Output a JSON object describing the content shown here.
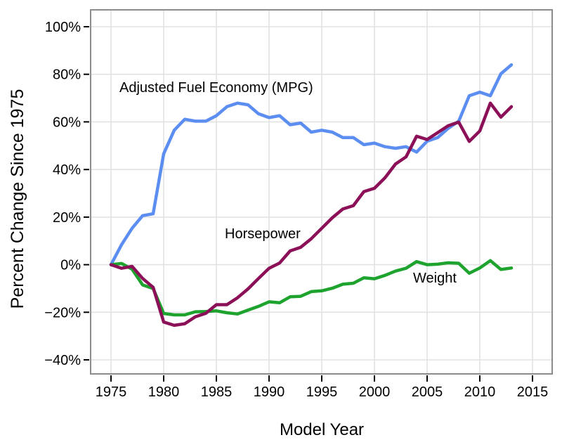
{
  "figure": {
    "background": "#ffffff",
    "text_color": "#000000",
    "grid_color": "#e2e2e2",
    "border_color": "#8c8c8c",
    "tick_color": "#000000"
  },
  "chart_data": {
    "type": "line",
    "title": "",
    "xlabel": "Model Year",
    "ylabel": "Percent Change Since 1975",
    "xlim": [
      1973,
      2017
    ],
    "ylim": [
      -46,
      108
    ],
    "grid": true,
    "legend_position": "inline-labels",
    "x_ticks": [
      1975,
      1980,
      1985,
      1990,
      1995,
      2000,
      2005,
      2010,
      2015
    ],
    "x_tick_labels": [
      "1975",
      "1980",
      "1985",
      "1990",
      "1995",
      "2000",
      "2005",
      "2010",
      "2015"
    ],
    "y_ticks": [
      -40,
      -20,
      0,
      20,
      40,
      60,
      80,
      100
    ],
    "y_tick_labels": [
      "−40%",
      "−20%",
      "0%",
      "20%",
      "40%",
      "60%",
      "80%",
      "100%"
    ],
    "x": [
      1975,
      1976,
      1977,
      1978,
      1979,
      1980,
      1981,
      1982,
      1983,
      1984,
      1985,
      1986,
      1987,
      1988,
      1989,
      1990,
      1991,
      1992,
      1993,
      1994,
      1995,
      1996,
      1997,
      1998,
      1999,
      2000,
      2001,
      2002,
      2003,
      2004,
      2005,
      2006,
      2007,
      2008,
      2009,
      2010,
      2011,
      2012,
      2013
    ],
    "series": [
      {
        "name": "Adjusted Fuel Economy (MPG)",
        "color": "#5b8ef0",
        "values": [
          0,
          8.4,
          15.3,
          20.6,
          21.4,
          46.6,
          56.5,
          61.1,
          60.3,
          60.3,
          62.6,
          66.4,
          67.9,
          67.2,
          63.4,
          61.8,
          62.6,
          58.8,
          59.5,
          55.7,
          56.5,
          55.7,
          53.4,
          53.4,
          50.4,
          51.1,
          49.6,
          48.9,
          49.6,
          47.3,
          51.9,
          53.4,
          57.3,
          60.3,
          71.0,
          72.5,
          71.0,
          80.2,
          84.0
        ]
      },
      {
        "name": "Horsepower",
        "color": "#8b1058",
        "values": [
          0,
          -1.5,
          -0.7,
          -5.8,
          -9.5,
          -24.1,
          -25.5,
          -24.8,
          -21.9,
          -20.4,
          -16.8,
          -16.8,
          -13.9,
          -10.2,
          -5.8,
          -1.5,
          0.7,
          5.8,
          7.3,
          10.9,
          15.3,
          19.7,
          23.4,
          24.8,
          30.7,
          32.1,
          36.5,
          42.3,
          45.3,
          54.0,
          52.6,
          55.5,
          58.4,
          59.9,
          51.8,
          56.2,
          67.9,
          62.0,
          66.4
        ]
      },
      {
        "name": "Weight",
        "color": "#1ea42e",
        "values": [
          0,
          0.5,
          -1.9,
          -8.5,
          -10.0,
          -20.5,
          -21.1,
          -21.1,
          -19.8,
          -19.7,
          -19.4,
          -20.2,
          -20.7,
          -19.1,
          -17.5,
          -15.6,
          -16.0,
          -13.5,
          -13.3,
          -11.3,
          -11.0,
          -9.9,
          -8.2,
          -7.8,
          -5.5,
          -5.9,
          -4.5,
          -2.7,
          -1.5,
          1.3,
          0.0,
          0.2,
          0.8,
          0.6,
          -3.6,
          -1.4,
          1.7,
          -2.0,
          -1.4
        ]
      }
    ]
  }
}
